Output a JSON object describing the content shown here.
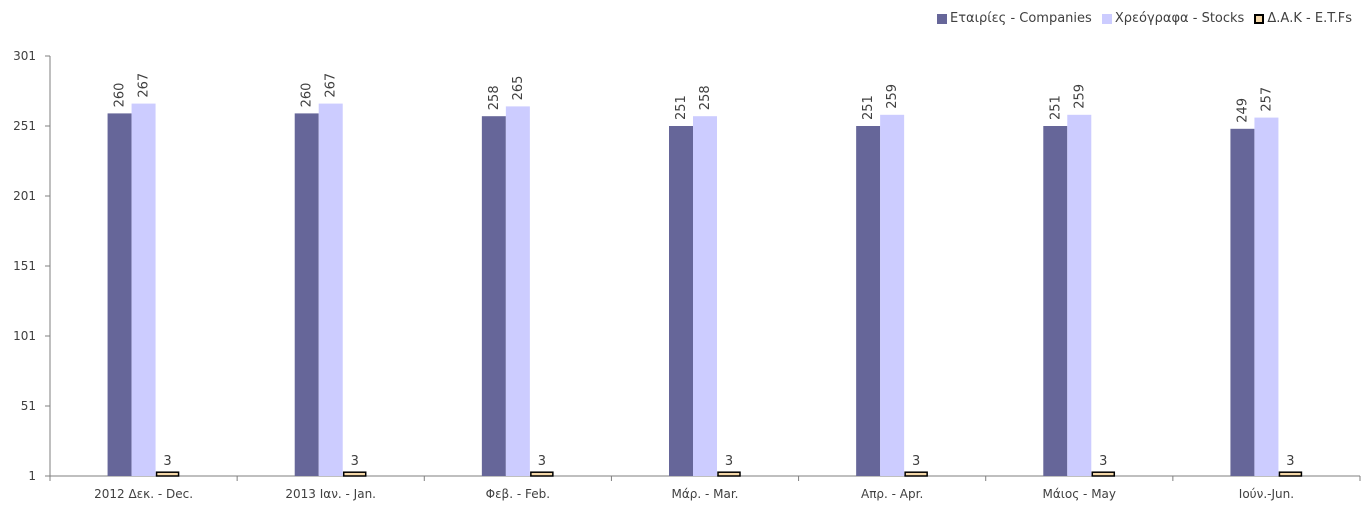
{
  "chart_data": {
    "type": "bar",
    "categories": [
      "2012 Δεκ. - Dec.",
      "2013 Ιαν. - Jan.",
      "Φεβ. - Feb.",
      "Μάρ. - Mar.",
      "Απρ. - Apr.",
      "Μάιος - May",
      "Ιούν.-Jun."
    ],
    "series": [
      {
        "name": "Εταιρίες - Companies",
        "values": [
          260,
          260,
          258,
          251,
          251,
          251,
          249
        ],
        "color": "#666699"
      },
      {
        "name": "Χρεόγραφα - Stocks",
        "values": [
          267,
          267,
          265,
          258,
          259,
          259,
          257
        ],
        "color": "#CCCCFF"
      },
      {
        "name": "Δ.Α.Κ - E.T.Fs",
        "values": [
          3,
          3,
          3,
          3,
          3,
          3,
          3
        ],
        "color": "#F5D8A8"
      }
    ],
    "yticks": [
      "301",
      "251",
      "201",
      "151",
      "101",
      "51",
      "1"
    ],
    "ylim": [
      1,
      301
    ],
    "grid": false,
    "legend_position": "top-right"
  }
}
